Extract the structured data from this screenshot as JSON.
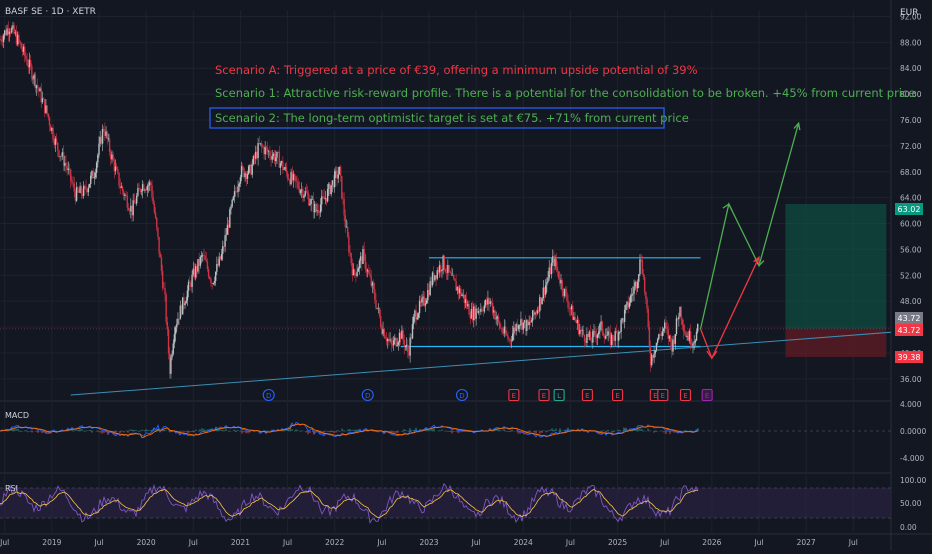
{
  "header": {
    "symbol_title": "BASF SE · 1D · XETR",
    "currency": "EUR"
  },
  "annotations": {
    "scenario_a": "Scenario A: Triggered at a price of €39, offering a minimum upside potential of 39%",
    "scenario_1": "Scenario 1: Attractive risk-reward profile. There is a potential for the consolidation to be broken. +45% from current price",
    "scenario_2": "Scenario 2: The long-term optimistic target is set at €75. +71% from current price"
  },
  "panes": {
    "macd_label": "MACD",
    "rsi_label": "RSI"
  },
  "price_badges": {
    "target": "63.02",
    "current_a": "43.72",
    "current_b": "43.72",
    "stop": "39.38"
  },
  "colors": {
    "background": "#131722",
    "grid": "#1e222d",
    "text": "#b2b5be",
    "candle_up": "#b9c2c2",
    "candle_down": "#cf3344",
    "channel": "#29b6f6",
    "trend": "#3c8fb5",
    "scenario_red": "#f23645",
    "scenario_green": "#4caf50",
    "scenario_box": "#2962ff",
    "target_zone": "#0d5c4a",
    "stop_zone": "#5c1a24",
    "macd_line": "#2962ff",
    "signal_line": "#ff6d00",
    "rsi_line": "#7e57c2",
    "rsi_band": "#2a2240"
  },
  "chart_data": {
    "type": "candlestick",
    "title": "BASF SE · 1D · XETR",
    "y_axis": {
      "ticks": [
        36,
        40,
        44,
        48,
        52,
        56,
        60,
        64,
        68,
        72,
        76,
        80,
        84,
        88,
        92
      ],
      "labels": [
        "36.00",
        "40.00",
        "44.00",
        "48.00",
        "52.00",
        "56.00",
        "60.00",
        "64.00",
        "68.00",
        "72.00",
        "76.00",
        "80.00",
        "84.00",
        "88.00",
        "92.00"
      ],
      "currency": "EUR",
      "ylim": [
        33.5,
        93
      ]
    },
    "x_axis": {
      "start": 2018.45,
      "end": 2027.9,
      "labels": [
        {
          "t": 2018.5,
          "text": "Jul"
        },
        {
          "t": 2019.0,
          "text": "2019"
        },
        {
          "t": 2019.5,
          "text": "Jul"
        },
        {
          "t": 2020.0,
          "text": "2020"
        },
        {
          "t": 2020.5,
          "text": "Jul"
        },
        {
          "t": 2021.0,
          "text": "2021"
        },
        {
          "t": 2021.5,
          "text": "Jul"
        },
        {
          "t": 2022.0,
          "text": "2022"
        },
        {
          "t": 2022.5,
          "text": "Jul"
        },
        {
          "t": 2023.0,
          "text": "2023"
        },
        {
          "t": 2023.5,
          "text": "Jul"
        },
        {
          "t": 2024.0,
          "text": "2024"
        },
        {
          "t": 2024.5,
          "text": "Jul"
        },
        {
          "t": 2025.0,
          "text": "2025"
        },
        {
          "t": 2025.5,
          "text": "Jul"
        },
        {
          "t": 2026.0,
          "text": "2026"
        },
        {
          "t": 2026.5,
          "text": "Jul"
        },
        {
          "t": 2027.0,
          "text": "2027"
        },
        {
          "t": 2027.5,
          "text": "Jul"
        }
      ]
    },
    "price_path": [
      [
        2018.45,
        88.5
      ],
      [
        2018.55,
        90.5
      ],
      [
        2018.65,
        88
      ],
      [
        2018.8,
        83
      ],
      [
        2018.95,
        77
      ],
      [
        2019.05,
        72
      ],
      [
        2019.15,
        69
      ],
      [
        2019.25,
        64.5
      ],
      [
        2019.35,
        65
      ],
      [
        2019.45,
        68
      ],
      [
        2019.55,
        75
      ],
      [
        2019.62,
        71
      ],
      [
        2019.72,
        66
      ],
      [
        2019.85,
        62
      ],
      [
        2019.95,
        66
      ],
      [
        2020.05,
        66
      ],
      [
        2020.12,
        58
      ],
      [
        2020.2,
        48
      ],
      [
        2020.25,
        37.5
      ],
      [
        2020.3,
        44
      ],
      [
        2020.4,
        48
      ],
      [
        2020.5,
        52
      ],
      [
        2020.6,
        55
      ],
      [
        2020.7,
        51
      ],
      [
        2020.8,
        55
      ],
      [
        2020.9,
        62
      ],
      [
        2021.0,
        68
      ],
      [
        2021.1,
        68
      ],
      [
        2021.2,
        72
      ],
      [
        2021.3,
        71
      ],
      [
        2021.4,
        70
      ],
      [
        2021.5,
        67.5
      ],
      [
        2021.6,
        66
      ],
      [
        2021.7,
        64.5
      ],
      [
        2021.8,
        62
      ],
      [
        2021.9,
        64
      ],
      [
        2022.0,
        67
      ],
      [
        2022.05,
        68
      ],
      [
        2022.12,
        59
      ],
      [
        2022.2,
        52
      ],
      [
        2022.3,
        55
      ],
      [
        2022.4,
        50
      ],
      [
        2022.5,
        44
      ],
      [
        2022.6,
        41
      ],
      [
        2022.7,
        43
      ],
      [
        2022.78,
        40
      ],
      [
        2022.85,
        46
      ],
      [
        2022.95,
        48
      ],
      [
        2023.05,
        52
      ],
      [
        2023.15,
        54
      ],
      [
        2023.25,
        51
      ],
      [
        2023.35,
        49
      ],
      [
        2023.45,
        46
      ],
      [
        2023.55,
        47
      ],
      [
        2023.65,
        48
      ],
      [
        2023.75,
        44
      ],
      [
        2023.85,
        42
      ],
      [
        2023.95,
        45
      ],
      [
        2024.05,
        44
      ],
      [
        2024.15,
        47
      ],
      [
        2024.25,
        51
      ],
      [
        2024.32,
        54.5
      ],
      [
        2024.42,
        50
      ],
      [
        2024.52,
        46
      ],
      [
        2024.62,
        43
      ],
      [
        2024.72,
        42
      ],
      [
        2024.82,
        44
      ],
      [
        2024.92,
        42
      ],
      [
        2025.0,
        43
      ],
      [
        2025.1,
        47
      ],
      [
        2025.2,
        51
      ],
      [
        2025.25,
        55
      ],
      [
        2025.3,
        48
      ],
      [
        2025.35,
        39
      ],
      [
        2025.42,
        42
      ],
      [
        2025.5,
        44
      ],
      [
        2025.58,
        41
      ],
      [
        2025.66,
        47
      ],
      [
        2025.72,
        43
      ],
      [
        2025.8,
        42
      ],
      [
        2025.86,
        43.72
      ]
    ],
    "channel": {
      "top": 54.7,
      "bottom": 41.0,
      "top_start": 2023.0,
      "bottom_start": 2022.7,
      "end": 2025.88
    },
    "trendline": {
      "start": [
        2019.2,
        33.5
      ],
      "end": [
        2027.9,
        43.2
      ]
    },
    "projection_paths": [
      {
        "name": "Scenario 1",
        "color": "green",
        "points": [
          [
            2025.88,
            43.72
          ],
          [
            2026.18,
            63
          ],
          [
            2026.5,
            53.5
          ],
          [
            2026.92,
            75.5
          ]
        ]
      },
      {
        "name": "Scenario A",
        "color": "red",
        "points": [
          [
            2025.88,
            43.72
          ],
          [
            2026.0,
            39.2
          ],
          [
            2026.5,
            54.8
          ]
        ]
      }
    ],
    "risk_reward": {
      "entry": 43.72,
      "target": 63.02,
      "stop": 39.38,
      "start": 2026.78,
      "end": 2027.85
    },
    "events": [
      {
        "t": 2021.3,
        "label": "D",
        "kind": "dividend"
      },
      {
        "t": 2022.35,
        "label": "D",
        "kind": "dividend"
      },
      {
        "t": 2023.35,
        "label": "D",
        "kind": "dividend"
      },
      {
        "t": 2023.9,
        "label": "E",
        "kind": "earnings"
      },
      {
        "t": 2024.22,
        "label": "E",
        "kind": "earnings"
      },
      {
        "t": 2024.38,
        "label": "L",
        "kind": "split"
      },
      {
        "t": 2024.68,
        "label": "E",
        "kind": "earnings"
      },
      {
        "t": 2025.0,
        "label": "E",
        "kind": "earnings"
      },
      {
        "t": 2025.4,
        "label": "E",
        "kind": "earnings"
      },
      {
        "t": 2025.48,
        "label": "E",
        "kind": "earnings"
      },
      {
        "t": 2025.72,
        "label": "E",
        "kind": "earnings"
      },
      {
        "t": 2025.95,
        "label": "E",
        "kind": "earnings-upcoming"
      }
    ],
    "macd": {
      "ticks": [
        "4.000",
        "0.0000",
        "-4.000"
      ],
      "values_range": [
        -4,
        4
      ]
    },
    "rsi": {
      "ticks": [
        "100.00",
        "50.00",
        "0.00"
      ],
      "band": [
        30,
        70
      ]
    }
  }
}
